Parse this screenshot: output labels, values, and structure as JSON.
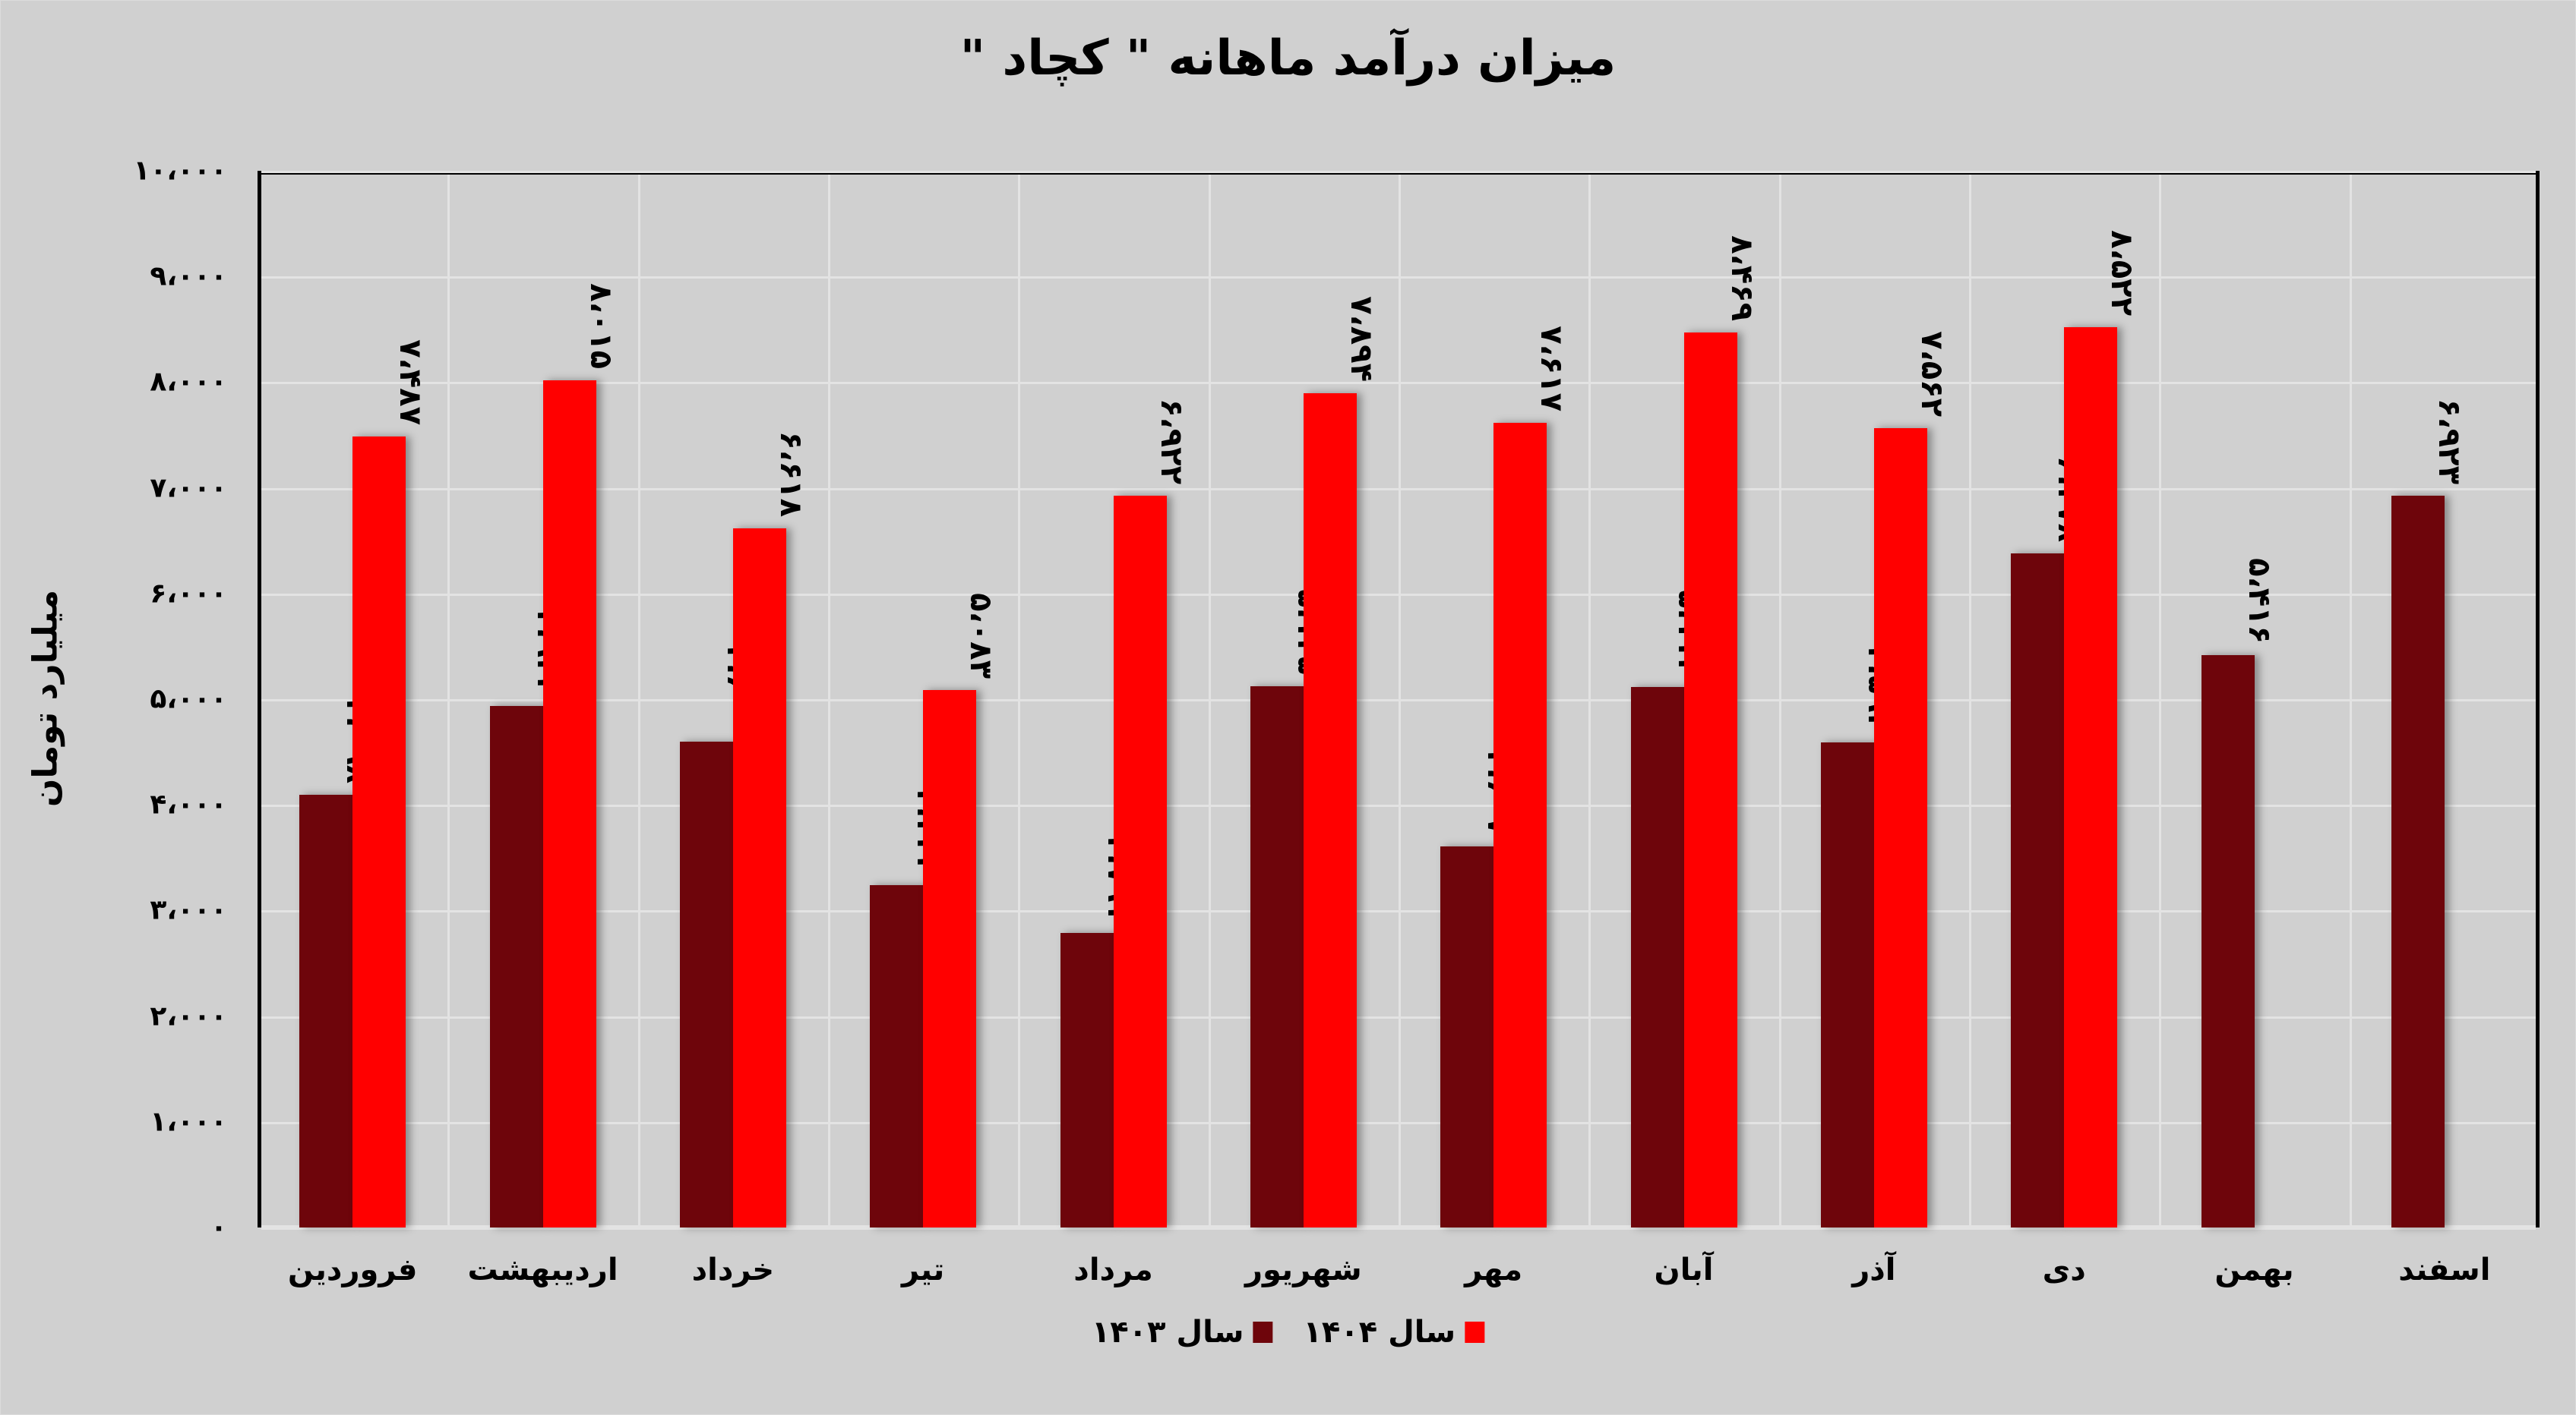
{
  "chart_data": {
    "type": "bar",
    "title": "میزان درآمد ماهانه \" کچاد \"",
    "xlabel": "",
    "ylabel": "میلیارد تومان",
    "ylim": [
      0,
      10000
    ],
    "yticks": [
      "۰",
      "۱،۰۰۰",
      "۲،۰۰۰",
      "۳،۰۰۰",
      "۴،۰۰۰",
      "۵،۰۰۰",
      "۶،۰۰۰",
      "۷،۰۰۰",
      "۸،۰۰۰",
      "۹،۰۰۰",
      "۱۰،۰۰۰"
    ],
    "grid": true,
    "legend_position": "bottom",
    "categories": [
      "فروردین",
      "اردیبهشت",
      "خرداد",
      "تیر",
      "مرداد",
      "شهریور",
      "مهر",
      "آبان",
      "آذر",
      "دی",
      "بهمن",
      "اسفند"
    ],
    "series": [
      {
        "name": "سال ۱۴۰۳",
        "color": "#6e050b",
        "values": [
          4098,
          4934,
          4600,
          3243,
          2791,
          5125,
          3607,
          5112,
          4593,
          6378,
          5416,
          6923
        ],
        "labels": [
          "۴،۰۹۸",
          "۴،۹۳۴",
          "۴،۶۰۰",
          "۳،۲۴۳",
          "۲،۷۹۱",
          "۵،۱۲۵",
          "۳،۶۰۷",
          "۵،۱۱۲",
          "۴،۵۹۳",
          "۶،۳۷۸",
          "۵،۴۱۶",
          "۶،۹۲۳"
        ]
      },
      {
        "name": "سال ۱۴۰۴",
        "color": "#ff0000",
        "values": [
          7487,
          8015,
          6618,
          5083,
          6922,
          7894,
          7617,
          8469,
          7562,
          8522,
          null,
          null
        ],
        "labels": [
          "۷،۴۸۷",
          "۸،۰۱۵",
          "۶،۶۱۸",
          "۵،۰۸۳",
          "۶،۹۲۲",
          "۷،۸۹۴",
          "۷،۶۱۷",
          "۸،۴۶۹",
          "۷،۵۶۲",
          "۸،۵۲۲",
          null,
          null
        ]
      }
    ]
  }
}
